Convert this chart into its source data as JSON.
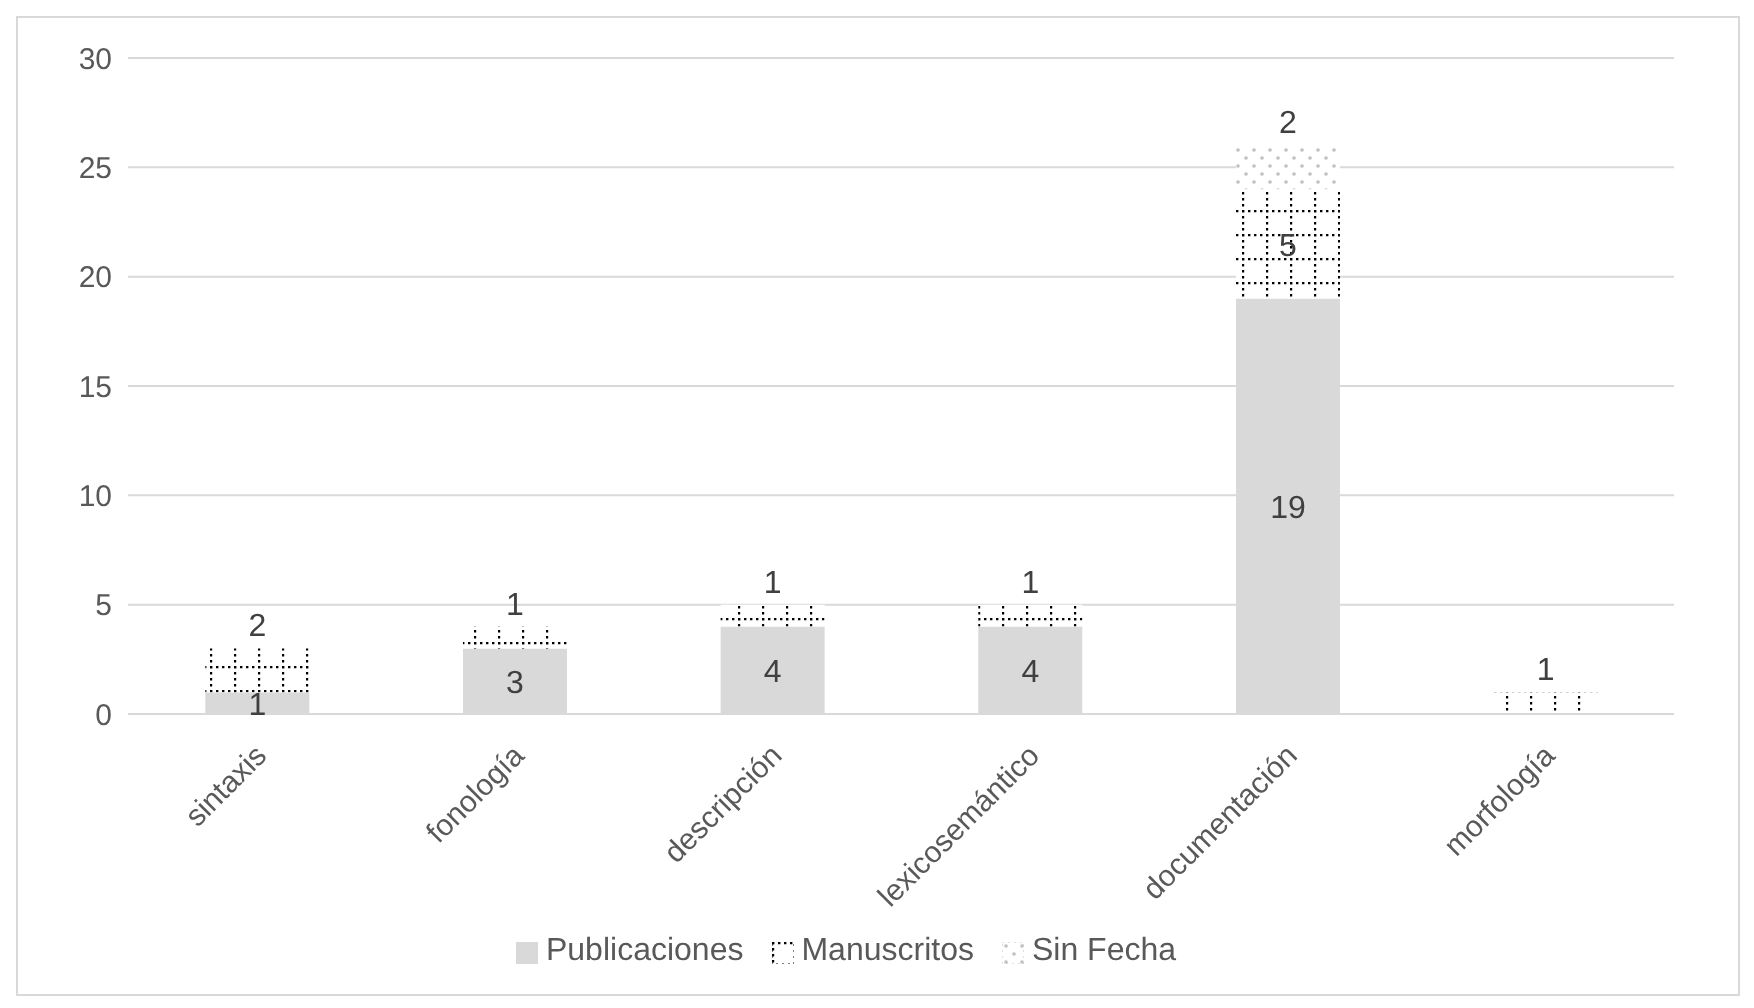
{
  "chart_data": {
    "type": "bar",
    "stacked": true,
    "categories": [
      "sintaxis",
      "fonología",
      "descripción",
      "lexicosemántico",
      "documentación",
      "morfología"
    ],
    "series": [
      {
        "name": "Publicaciones",
        "color": "#d9d9d9",
        "values": [
          1,
          3,
          4,
          4,
          19,
          null
        ]
      },
      {
        "name": "Manuscritos",
        "color": "#000000",
        "values": [
          2,
          1,
          1,
          1,
          5,
          1
        ]
      },
      {
        "name": "Sin Fecha",
        "color": "#bfbfbf",
        "values": [
          null,
          null,
          null,
          null,
          2,
          null
        ]
      }
    ],
    "ylim": [
      0,
      30
    ],
    "yticks": [
      0,
      5,
      10,
      15,
      20,
      25,
      30
    ],
    "grid": "y",
    "legend": "bottom",
    "data_labels": true
  }
}
